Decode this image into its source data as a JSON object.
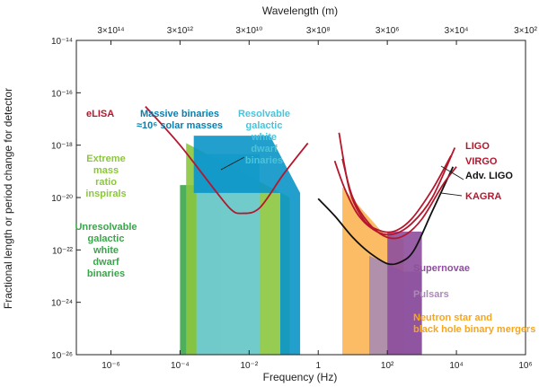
{
  "chart_data": {
    "type": "area",
    "title": "",
    "xlabel": "Frequency (Hz)",
    "ylabel": "Fractional length or period change for detector",
    "top_axis_label": "Wavelength (m)",
    "xscale": "log",
    "yscale": "log",
    "xlim": [
      1e-07,
      1000000.0
    ],
    "ylim": [
      1e-26,
      1e-14
    ],
    "x_ticks": [
      {
        "value": 1e-06,
        "label": "10⁻⁶"
      },
      {
        "value": 0.0001,
        "label": "10⁻⁴"
      },
      {
        "value": 0.01,
        "label": "10⁻²"
      },
      {
        "value": 1,
        "label": "1"
      },
      {
        "value": 100,
        "label": "10²"
      },
      {
        "value": 10000.0,
        "label": "10⁴"
      },
      {
        "value": 1000000.0,
        "label": "10⁶"
      }
    ],
    "top_ticks": [
      {
        "freq": 1e-06,
        "label": "3×10¹⁴"
      },
      {
        "freq": 0.0001,
        "label": "3×10¹²"
      },
      {
        "freq": 0.01,
        "label": "3×10¹⁰"
      },
      {
        "freq": 1,
        "label": "3×10⁸"
      },
      {
        "freq": 100,
        "label": "3×10⁶"
      },
      {
        "freq": 10000.0,
        "label": "3×10⁴"
      },
      {
        "freq": 1000000.0,
        "label": "3×10²"
      }
    ],
    "y_ticks": [
      {
        "value": 1e-14,
        "label": "10⁻¹⁴"
      },
      {
        "value": 1e-16,
        "label": "10⁻¹⁶"
      },
      {
        "value": 1e-18,
        "label": "10⁻¹⁸"
      },
      {
        "value": 1e-20,
        "label": "10⁻²⁰"
      },
      {
        "value": 1e-22,
        "label": "10⁻²²"
      },
      {
        "value": 1e-24,
        "label": "10⁻²⁴"
      },
      {
        "value": 1e-26,
        "label": "10⁻²⁶"
      }
    ],
    "grid": false,
    "sources": [
      {
        "name": "Unresolvable galactic white dwarf binaries",
        "color": "#3aa54a",
        "polygon": [
          [
            0.0001,
            1e-26
          ],
          [
            0.0001,
            3e-20
          ],
          [
            0.0015,
            3e-20
          ],
          [
            0.0015,
            1e-26
          ]
        ]
      },
      {
        "name": "Extreme mass ratio inspirals",
        "color": "#8cc63f",
        "polygon": [
          [
            0.00015,
            1e-26
          ],
          [
            0.00015,
            1.2e-18
          ],
          [
            0.15,
            1e-20
          ],
          [
            0.15,
            1e-26
          ]
        ]
      },
      {
        "name": "Resolvable galactic white dwarf binaries",
        "color": "#6dcbd8",
        "polygon": [
          [
            0.0003,
            1e-26
          ],
          [
            0.0003,
            4.5e-19
          ],
          [
            0.02,
            4.5e-19
          ],
          [
            0.02,
            1e-26
          ]
        ]
      },
      {
        "name": "Massive binaries ≈10⁶ solar masses",
        "color": "#0a95c8",
        "polygon": [
          [
            0.00025,
            2.3e-18
          ],
          [
            0.04,
            2.3e-18
          ],
          [
            0.3,
            1.5e-20
          ],
          [
            0.3,
            1e-26
          ],
          [
            0.08,
            1e-26
          ],
          [
            0.08,
            1.5e-20
          ],
          [
            0.00025,
            1.5e-20
          ]
        ]
      },
      {
        "name": "Neutron star and black hole binary mergers",
        "color": "#fbb554",
        "polygon": [
          [
            5,
            1e-26
          ],
          [
            5,
            2.5e-20
          ],
          [
            80,
            4e-22
          ],
          [
            300,
            2.5e-22
          ],
          [
            300,
            1e-26
          ]
        ]
      },
      {
        "name": "Pulsars",
        "color": "#a98bb4",
        "polygon": [
          [
            30,
            1e-26
          ],
          [
            30,
            6e-23
          ],
          [
            300,
            1.5e-23
          ],
          [
            1000,
            1.5e-23
          ],
          [
            1000,
            1e-26
          ]
        ]
      },
      {
        "name": "Supernovae",
        "color": "#8d4e9d",
        "polygon": [
          [
            100,
            1e-26
          ],
          [
            100,
            5e-22
          ],
          [
            1000,
            5e-22
          ],
          [
            1000,
            1e-26
          ]
        ]
      }
    ],
    "curves": [
      {
        "name": "eLISA",
        "color": "#b5172d",
        "points": [
          [
            1e-05,
            3e-17
          ],
          [
            0.0001,
            1e-18
          ],
          [
            0.001,
            2e-20
          ],
          [
            0.003,
            3.5e-21
          ],
          [
            0.006,
            2.5e-21
          ],
          [
            0.02,
            4e-21
          ],
          [
            0.1,
            8e-20
          ],
          [
            0.5,
            1.2e-18
          ]
        ]
      },
      {
        "name": "LIGO",
        "color": "#b5172d",
        "points": [
          [
            4,
            3e-18
          ],
          [
            8,
            2e-20
          ],
          [
            20,
            1.5e-21
          ],
          [
            50,
            6e-22
          ],
          [
            150,
            5e-22
          ],
          [
            500,
            1.5e-21
          ],
          [
            2000,
            2e-20
          ],
          [
            7000,
            4e-19
          ]
        ]
      },
      {
        "name": "VIRGO",
        "color": "#b5172d",
        "points": [
          [
            3,
            2.5e-19
          ],
          [
            6,
            2e-20
          ],
          [
            15,
            2e-21
          ],
          [
            50,
            5e-22
          ],
          [
            150,
            4e-22
          ],
          [
            500,
            1e-21
          ],
          [
            2000,
            1e-20
          ],
          [
            9000,
            8e-19
          ]
        ]
      },
      {
        "name": "Adv. LIGO",
        "color": "#111111",
        "points": [
          [
            1,
            9e-21
          ],
          [
            3,
            2e-21
          ],
          [
            10,
            3e-22
          ],
          [
            30,
            8e-23
          ],
          [
            100,
            3e-23
          ],
          [
            250,
            3.5e-23
          ],
          [
            600,
            1e-22
          ],
          [
            2000,
            3e-21
          ],
          [
            8000,
            1.5e-19
          ]
        ]
      },
      {
        "name": "KAGRA",
        "color": "#b5172d",
        "points": [
          [
            5,
            3e-19
          ],
          [
            10,
            1e-20
          ],
          [
            30,
            1e-21
          ],
          [
            100,
            3e-22
          ],
          [
            300,
            3.5e-22
          ],
          [
            1000,
            1.5e-21
          ],
          [
            4000,
            3e-20
          ],
          [
            10000.0,
            1.5e-19
          ]
        ]
      }
    ],
    "labels": [
      {
        "text": "eLISA",
        "color": "#b5172d",
        "lines": [
          "eLISA"
        ]
      },
      {
        "text": "Massive binaries ≈10⁶ solar masses",
        "color": "#0a80b0",
        "lines": [
          "Massive binaries",
          "≈10⁶ solar masses"
        ]
      },
      {
        "text": "Resolvable galactic white dwarf binaries",
        "color": "#4cc3d9",
        "lines": [
          "Resolvable",
          "galactic",
          "white",
          "dwarf",
          "binaries"
        ]
      },
      {
        "text": "Extreme mass ratio inspirals",
        "color": "#8cc63f",
        "lines": [
          "Extreme",
          "mass",
          "ratio",
          "inspirals"
        ]
      },
      {
        "text": "Unresolvable galactic white dwarf binaries",
        "color": "#3aa54a",
        "lines": [
          "Unresolvable",
          "galactic",
          "white",
          "dwarf",
          "binaries"
        ]
      },
      {
        "text": "LIGO",
        "color": "#b5172d",
        "lines": [
          "LIGO"
        ]
      },
      {
        "text": "VIRGO",
        "color": "#b5172d",
        "lines": [
          "VIRGO"
        ]
      },
      {
        "text": "Adv. LIGO",
        "color": "#111111",
        "lines": [
          "Adv. LIGO"
        ]
      },
      {
        "text": "KAGRA",
        "color": "#b5172d",
        "lines": [
          "KAGRA"
        ]
      },
      {
        "text": "Supernovae",
        "color": "#8d4e9d",
        "lines": [
          "Supernovae"
        ]
      },
      {
        "text": "Pulsars",
        "color": "#a98bb4",
        "lines": [
          "Pulsars"
        ]
      },
      {
        "text": "Neutron star and black hole binary mergers",
        "color": "#f5a623",
        "lines": [
          "Neutron star and",
          "black hole binary mergers"
        ]
      }
    ]
  }
}
